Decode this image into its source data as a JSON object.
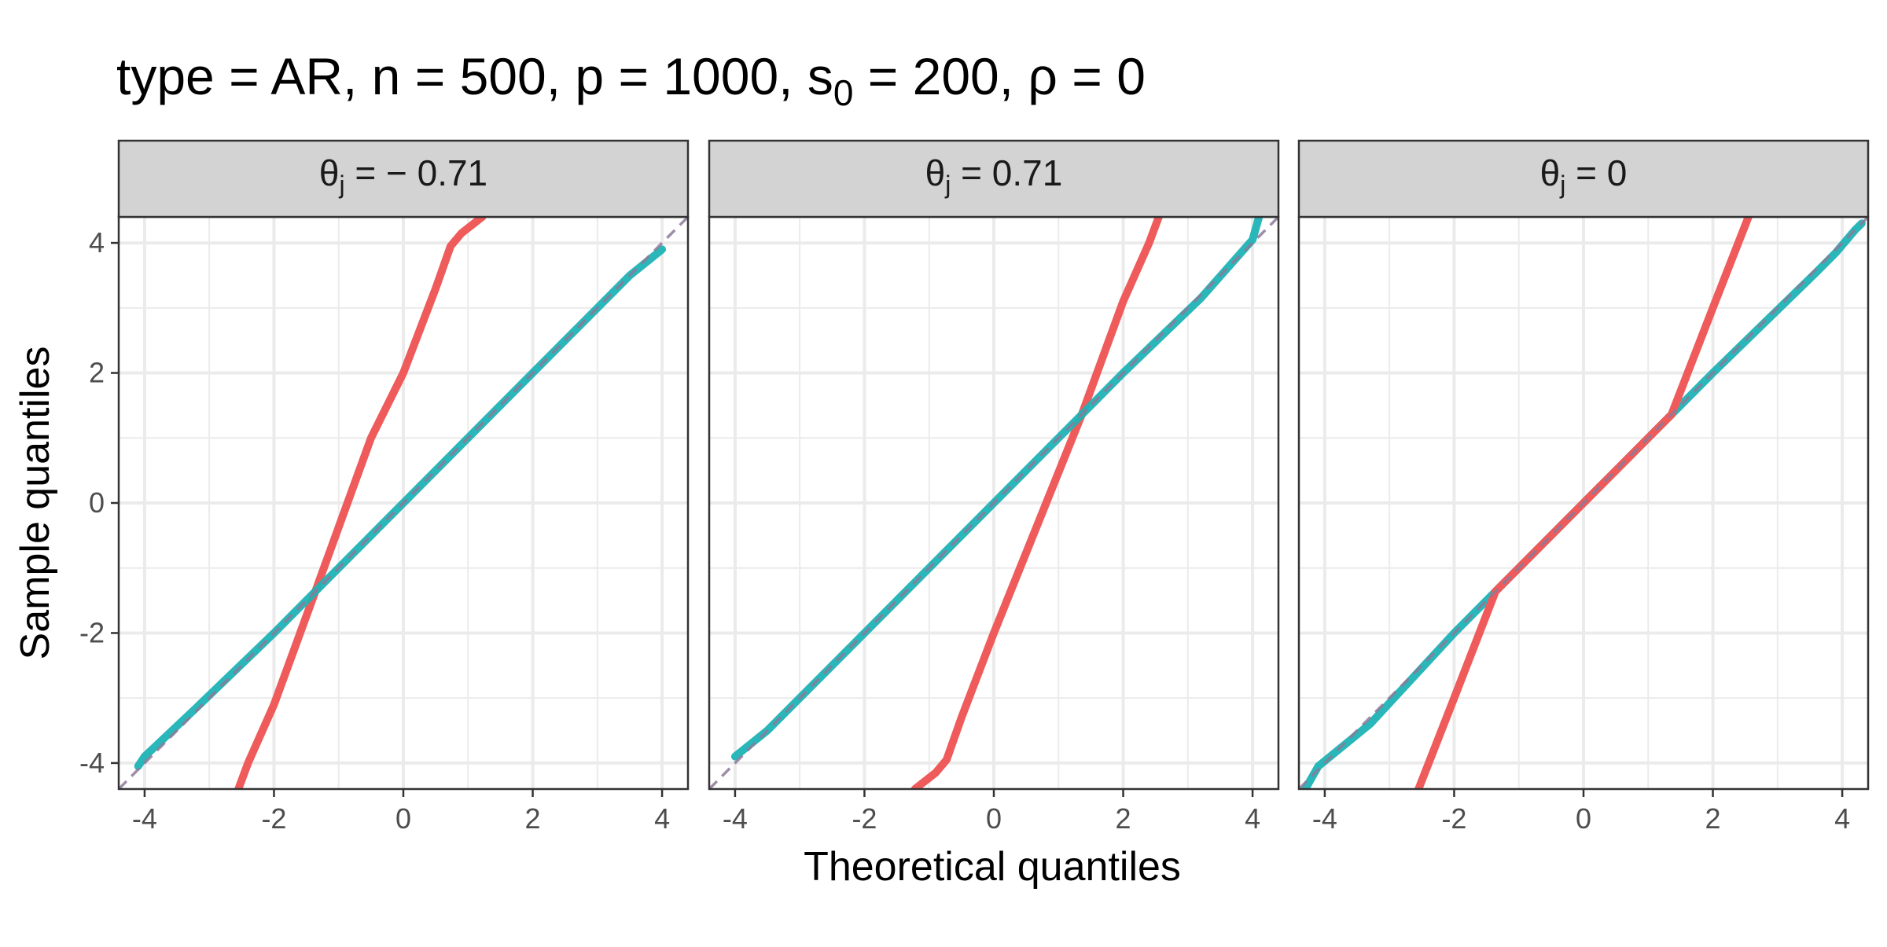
{
  "chart_data": {
    "type": "line",
    "title": "type = AR, n = 500, p = 1000, s₀ = 200, ρ = 0",
    "title_parts": [
      "type = AR, n = 500, p = 1000, s",
      "0",
      " = 200, ρ = 0"
    ],
    "xlabel": "Theoretical quantiles",
    "ylabel": "Sample quantiles",
    "xlim": [
      -4.4,
      4.4
    ],
    "ylim": [
      -4.4,
      4.4
    ],
    "x_ticks": [
      -4,
      -2,
      0,
      2,
      4
    ],
    "y_ticks": [
      -4,
      -2,
      0,
      2,
      4
    ],
    "grid": true,
    "reference_line": {
      "style": "dashed",
      "slope": 1,
      "intercept": 0,
      "color": "#8c7a99"
    },
    "colors": {
      "red": "#ef5b5b",
      "teal": "#1eb3b6",
      "strip_bg": "#d3d3d3",
      "grid": "#ebebeb"
    },
    "panels": [
      {
        "strip_label": [
          "θ",
          "j",
          " = − 0.71"
        ],
        "series": [
          {
            "color": "red",
            "x": [
              -2.55,
              -2.4,
              -2.0,
              -1.36,
              -0.5,
              0.0,
              0.5,
              0.73,
              0.9,
              1.22
            ],
            "y": [
              -4.4,
              -4.0,
              -3.1,
              -1.36,
              1.0,
              2.0,
              3.3,
              3.95,
              4.15,
              4.4
            ]
          },
          {
            "color": "teal",
            "x": [
              -4.1,
              -4.0,
              -3.2,
              -2.0,
              -1.36,
              0.0,
              2.0,
              3.5,
              4.0
            ],
            "y": [
              -4.05,
              -3.9,
              -3.15,
              -2.0,
              -1.36,
              0.0,
              2.0,
              3.5,
              3.9
            ]
          }
        ]
      },
      {
        "strip_label": [
          "θ",
          "j",
          " = 0.71"
        ],
        "series": [
          {
            "color": "red",
            "x": [
              -1.22,
              -0.9,
              -0.73,
              -0.5,
              0.0,
              1.36,
              2.0,
              2.4,
              2.55
            ],
            "y": [
              -4.4,
              -4.15,
              -3.95,
              -3.3,
              -2.0,
              1.36,
              3.1,
              4.0,
              4.4
            ]
          },
          {
            "color": "teal",
            "x": [
              -4.0,
              -3.5,
              -2.0,
              0.0,
              1.36,
              2.0,
              3.2,
              4.0,
              4.1
            ],
            "y": [
              -3.9,
              -3.5,
              -2.0,
              0.0,
              1.36,
              2.0,
              3.15,
              4.05,
              4.4
            ]
          }
        ]
      },
      {
        "strip_label": [
          "θ",
          "j",
          " = 0"
        ],
        "series": [
          {
            "color": "teal",
            "x": [
              -4.3,
              -4.1,
              -3.3,
              -2.0,
              -1.36,
              1.36,
              2.0,
              3.6,
              3.9,
              4.2,
              4.3
            ],
            "y": [
              -4.4,
              -4.05,
              -3.4,
              -2.0,
              -1.36,
              1.36,
              2.0,
              3.55,
              3.85,
              4.2,
              4.3
            ]
          },
          {
            "color": "red",
            "x": [
              -2.55,
              -2.0,
              -1.36
            ],
            "y": [
              -4.4,
              -3.0,
              -1.36
            ]
          },
          {
            "color": "red",
            "x": [
              -1.36,
              1.36
            ],
            "y": [
              -1.36,
              1.36
            ]
          },
          {
            "color": "red",
            "x": [
              1.36,
              2.0,
              2.55
            ],
            "y": [
              1.36,
              3.0,
              4.4
            ]
          }
        ]
      }
    ]
  }
}
